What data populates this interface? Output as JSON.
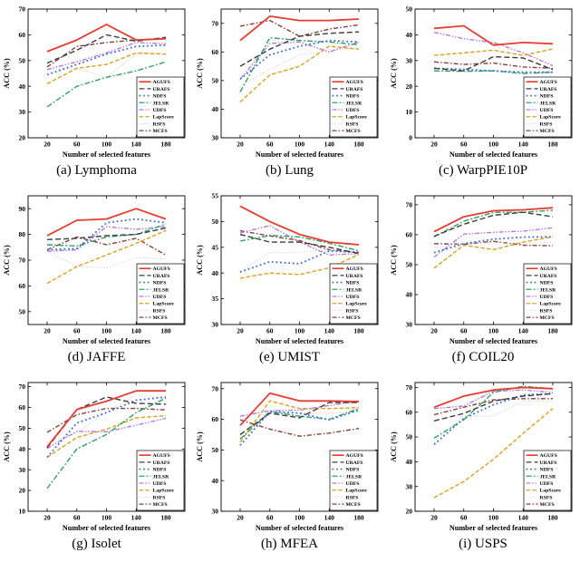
{
  "figure": {
    "x_label": "Number of selected features",
    "y_label": "ACC (%)",
    "x_ticks": [
      20,
      60,
      100,
      140,
      180
    ],
    "background": "#ffffff",
    "axis_color": "#000000",
    "legend_position": "lower right"
  },
  "methods": [
    {
      "name": "AGUFS",
      "color": "#e73c30",
      "line_style": "solid"
    },
    {
      "name": "URAFS",
      "color": "#3d3d3d",
      "line_style": "dashed"
    },
    {
      "name": "NDFS",
      "color": "#3e6dd8",
      "line_style": "dotted"
    },
    {
      "name": "JELSR",
      "color": "#2fa266",
      "line_style": "dash-dot"
    },
    {
      "name": "UDFS",
      "color": "#b57ce3",
      "line_style": "dash-dot-dot"
    },
    {
      "name": "LapScore",
      "color": "#dda11c",
      "line_style": "dashed"
    },
    {
      "name": "RSFS",
      "color": "#c9c9c9",
      "line_style": "dotted"
    },
    {
      "name": "MCFS",
      "color": "#8a3e3a",
      "line_style": "dash-dot"
    }
  ],
  "chart_data": [
    {
      "type": "line",
      "dataset": "Lymphoma",
      "caption": "(a) Lymphoma",
      "xlabel": "Number of selected features",
      "ylabel": "ACC (%)",
      "x": [
        20,
        60,
        100,
        140,
        180
      ],
      "ylim": [
        20,
        70
      ],
      "yticks": [
        20,
        30,
        40,
        50,
        60,
        70
      ],
      "grid": false,
      "legend_position": "lower right",
      "series": [
        {
          "name": "AGUFS",
          "values": [
            53.5,
            58,
            64,
            58,
            58.5
          ]
        },
        {
          "name": "URAFS",
          "values": [
            49,
            54,
            60,
            57.5,
            59
          ]
        },
        {
          "name": "NDFS",
          "values": [
            44.5,
            48.5,
            52.5,
            55.5,
            56
          ]
        },
        {
          "name": "JELSR",
          "values": [
            32,
            40,
            43.5,
            46,
            49.5
          ]
        },
        {
          "name": "UDFS",
          "values": [
            46.5,
            49.5,
            53,
            57,
            56.5
          ]
        },
        {
          "name": "LapScore",
          "values": [
            41,
            47,
            48.5,
            53,
            52.5
          ]
        },
        {
          "name": "RSFS",
          "values": [
            46.5,
            47,
            43.5,
            52.5,
            52.5
          ]
        },
        {
          "name": "MCFS",
          "values": [
            47.5,
            55.5,
            57,
            58,
            58.5
          ]
        }
      ]
    },
    {
      "type": "line",
      "dataset": "Lung",
      "caption": "(b) Lung",
      "xlabel": "Number of selected features",
      "ylabel": "ACC (%)",
      "x": [
        20,
        60,
        100,
        140,
        180
      ],
      "ylim": [
        30,
        75
      ],
      "yticks": [
        30,
        40,
        50,
        60,
        70
      ],
      "grid": false,
      "legend_position": "lower right",
      "series": [
        {
          "name": "AGUFS",
          "values": [
            64,
            72.5,
            71,
            71,
            71.5
          ]
        },
        {
          "name": "URAFS",
          "values": [
            55,
            61,
            65.5,
            66.5,
            67
          ]
        },
        {
          "name": "NDFS",
          "values": [
            50.5,
            59,
            62,
            64,
            63.5
          ]
        },
        {
          "name": "JELSR",
          "values": [
            46,
            65,
            64,
            63.5,
            62.5
          ]
        },
        {
          "name": "UDFS",
          "values": [
            50.5,
            63,
            63.5,
            60,
            63.5
          ]
        },
        {
          "name": "LapScore",
          "values": [
            42.5,
            52,
            55,
            62,
            61
          ]
        },
        {
          "name": "RSFS",
          "values": [
            48,
            54,
            59,
            60.5,
            61.5
          ]
        },
        {
          "name": "MCFS",
          "values": [
            69,
            71,
            65.5,
            68,
            69.5
          ]
        }
      ]
    },
    {
      "type": "line",
      "dataset": "WarpPIE10P",
      "caption": "(c) WarpPIE10P",
      "xlabel": "Number of selected features",
      "ylabel": "ACC (%)",
      "x": [
        20,
        60,
        100,
        140,
        180
      ],
      "ylim": [
        0,
        50
      ],
      "yticks": [
        0,
        10,
        20,
        30,
        40,
        50
      ],
      "grid": false,
      "legend_position": "lower right",
      "series": [
        {
          "name": "AGUFS",
          "values": [
            42.5,
            43.5,
            36,
            37,
            36.5
          ]
        },
        {
          "name": "URAFS",
          "values": [
            27,
            26,
            31.5,
            31,
            26.5
          ]
        },
        {
          "name": "NDFS",
          "values": [
            27,
            26.5,
            26,
            25.5,
            25.5
          ]
        },
        {
          "name": "JELSR",
          "values": [
            26,
            25.8,
            26,
            25,
            25.5
          ]
        },
        {
          "name": "UDFS",
          "values": [
            41,
            38.5,
            37,
            33,
            28
          ]
        },
        {
          "name": "LapScore",
          "values": [
            32,
            33,
            34,
            32,
            34.5
          ]
        },
        {
          "name": "RSFS",
          "values": [
            26.5,
            27,
            26,
            25,
            25
          ]
        },
        {
          "name": "MCFS",
          "values": [
            29.5,
            28.5,
            29,
            27.5,
            27
          ]
        }
      ]
    },
    {
      "type": "line",
      "dataset": "JAFFE",
      "caption": "(d) JAFFE",
      "xlabel": "Number of selected features",
      "ylabel": "ACC (%)",
      "x": [
        20,
        60,
        100,
        140,
        180
      ],
      "ylim": [
        45,
        95
      ],
      "yticks": [
        50,
        60,
        70,
        80,
        90
      ],
      "grid": false,
      "legend_position": "lower right",
      "series": [
        {
          "name": "AGUFS",
          "values": [
            79.5,
            85.5,
            86,
            90,
            86
          ]
        },
        {
          "name": "URAFS",
          "values": [
            78,
            78.5,
            79.5,
            80,
            82.5
          ]
        },
        {
          "name": "NDFS",
          "values": [
            74,
            74.5,
            84.5,
            86,
            84.5
          ]
        },
        {
          "name": "JELSR",
          "values": [
            76,
            75.5,
            79,
            80,
            84
          ]
        },
        {
          "name": "UDFS",
          "values": [
            73.5,
            74,
            83,
            82,
            83
          ]
        },
        {
          "name": "LapScore",
          "values": [
            61,
            67.5,
            72,
            76.5,
            81.5
          ]
        },
        {
          "name": "RSFS",
          "values": [
            73.5,
            67.5,
            67,
            71,
            70.5
          ]
        },
        {
          "name": "MCFS",
          "values": [
            74,
            79,
            76,
            78.5,
            72
          ]
        }
      ]
    },
    {
      "type": "line",
      "dataset": "UMIST",
      "caption": "(e) UMIST",
      "xlabel": "Number of selected features",
      "ylabel": "ACC (%)",
      "x": [
        20,
        60,
        100,
        140,
        180
      ],
      "ylim": [
        30,
        55
      ],
      "yticks": [
        30,
        35,
        40,
        45,
        50,
        55
      ],
      "grid": false,
      "legend_position": "lower right",
      "series": [
        {
          "name": "AGUFS",
          "values": [
            53,
            50,
            47.5,
            46,
            45.5
          ]
        },
        {
          "name": "URAFS",
          "values": [
            47.5,
            46,
            46,
            45,
            43.8
          ]
        },
        {
          "name": "NDFS",
          "values": [
            40.2,
            42.2,
            41.8,
            44.3,
            44
          ]
        },
        {
          "name": "JELSR",
          "values": [
            46.2,
            47.3,
            47,
            45.8,
            44.3
          ]
        },
        {
          "name": "UDFS",
          "values": [
            47.8,
            49.2,
            46,
            43.5,
            43.8
          ]
        },
        {
          "name": "LapScore",
          "values": [
            39,
            40,
            39.7,
            41,
            43.6
          ]
        },
        {
          "name": "RSFS",
          "values": [
            40.3,
            44,
            44,
            44.5,
            43.8
          ]
        },
        {
          "name": "MCFS",
          "values": [
            48.2,
            47.2,
            46.3,
            44.5,
            44
          ]
        }
      ]
    },
    {
      "type": "line",
      "dataset": "COIL20",
      "caption": "(f) COIL20",
      "xlabel": "Number of selected features",
      "ylabel": "ACC (%)",
      "x": [
        20,
        60,
        100,
        140,
        180
      ],
      "ylim": [
        30,
        73
      ],
      "yticks": [
        30,
        40,
        50,
        60,
        70
      ],
      "grid": false,
      "legend_position": "lower right",
      "series": [
        {
          "name": "AGUFS",
          "values": [
            61,
            66,
            68,
            68.3,
            69
          ]
        },
        {
          "name": "URAFS",
          "values": [
            59.5,
            63.5,
            66.5,
            67.5,
            66
          ]
        },
        {
          "name": "NDFS",
          "values": [
            54,
            57,
            58.5,
            59.2,
            59.3
          ]
        },
        {
          "name": "JELSR",
          "values": [
            59.3,
            64.5,
            67.5,
            67.5,
            68.2
          ]
        },
        {
          "name": "UDFS",
          "values": [
            52.5,
            60.2,
            60.8,
            61.2,
            62.3
          ]
        },
        {
          "name": "LapScore",
          "values": [
            48.8,
            56.5,
            55,
            57.5,
            59.3
          ]
        },
        {
          "name": "RSFS",
          "values": [
            55.8,
            57,
            57.5,
            57,
            57.5
          ]
        },
        {
          "name": "MCFS",
          "values": [
            57,
            56.8,
            57.8,
            56.5,
            56.3
          ]
        }
      ]
    },
    {
      "type": "line",
      "dataset": "Isolet",
      "caption": "(g) Isolet",
      "xlabel": "Number of selected features",
      "ylabel": "ACC (%)",
      "x": [
        20,
        60,
        100,
        140,
        180
      ],
      "ylim": [
        10,
        72
      ],
      "yticks": [
        10,
        20,
        30,
        40,
        50,
        60,
        70
      ],
      "grid": false,
      "legend_position": "lower right",
      "series": [
        {
          "name": "AGUFS",
          "values": [
            41,
            59,
            63,
            68,
            68
          ]
        },
        {
          "name": "URAFS",
          "values": [
            40.5,
            59,
            65,
            62,
            61.5
          ]
        },
        {
          "name": "NDFS",
          "values": [
            36,
            52.5,
            57.5,
            63.5,
            65
          ]
        },
        {
          "name": "JELSR",
          "values": [
            21,
            40,
            47,
            57.5,
            64.5
          ]
        },
        {
          "name": "UDFS",
          "values": [
            40.3,
            48.5,
            48.3,
            51.5,
            54.8
          ]
        },
        {
          "name": "LapScore",
          "values": [
            36,
            45.5,
            49.5,
            55,
            56
          ]
        },
        {
          "name": "RSFS",
          "values": [
            43,
            47.5,
            58,
            66,
            64.5
          ]
        },
        {
          "name": "MCFS",
          "values": [
            48,
            56.5,
            59.5,
            59.5,
            58.8
          ]
        }
      ]
    },
    {
      "type": "line",
      "dataset": "MFEA",
      "caption": "(h) MFEA",
      "xlabel": "Number of selected features",
      "ylabel": "ACC (%)",
      "x": [
        20,
        60,
        100,
        140,
        180
      ],
      "ylim": [
        30,
        72
      ],
      "yticks": [
        30,
        40,
        50,
        60,
        70
      ],
      "grid": false,
      "legend_position": "lower right",
      "series": [
        {
          "name": "AGUFS",
          "values": [
            58,
            68.5,
            66,
            66,
            65.8
          ]
        },
        {
          "name": "URAFS",
          "values": [
            55,
            62,
            60.5,
            65.5,
            65.5
          ]
        },
        {
          "name": "NDFS",
          "values": [
            51.5,
            62.5,
            62,
            59.8,
            63
          ]
        },
        {
          "name": "JELSR",
          "values": [
            53.5,
            62.5,
            61,
            60,
            63.5
          ]
        },
        {
          "name": "UDFS",
          "values": [
            61,
            62.8,
            63,
            64.5,
            66
          ]
        },
        {
          "name": "LapScore",
          "values": [
            52.5,
            66,
            63.5,
            63.5,
            63.8
          ]
        },
        {
          "name": "RSFS",
          "values": [
            54,
            62.8,
            62,
            62,
            62.5
          ]
        },
        {
          "name": "MCFS",
          "values": [
            59.8,
            56.8,
            54.5,
            55.5,
            57
          ]
        }
      ]
    },
    {
      "type": "line",
      "dataset": "USPS",
      "caption": "(i) USPS",
      "xlabel": "Number of selected features",
      "ylabel": "ACC (%)",
      "x": [
        20,
        60,
        100,
        140,
        180
      ],
      "ylim": [
        20,
        72
      ],
      "yticks": [
        20,
        30,
        40,
        50,
        60,
        70
      ],
      "grid": false,
      "legend_position": "lower right",
      "series": [
        {
          "name": "AGUFS",
          "values": [
            62,
            66.5,
            69,
            70,
            69.5
          ]
        },
        {
          "name": "URAFS",
          "values": [
            56.5,
            59.5,
            64.5,
            66.5,
            67.5
          ]
        },
        {
          "name": "NDFS",
          "values": [
            47,
            57.5,
            63,
            67,
            67.5
          ]
        },
        {
          "name": "JELSR",
          "values": [
            49.5,
            57,
            68,
            70.5,
            69.5
          ]
        },
        {
          "name": "UDFS",
          "values": [
            61.5,
            62.5,
            68.5,
            69,
            68
          ]
        },
        {
          "name": "LapScore",
          "values": [
            25.5,
            32,
            41,
            51.5,
            61.5
          ]
        },
        {
          "name": "RSFS",
          "values": [
            48,
            58.5,
            58.5,
            64.5,
            64.5
          ]
        },
        {
          "name": "MCFS",
          "values": [
            59,
            62,
            65,
            65.5,
            65.5
          ]
        }
      ]
    }
  ]
}
